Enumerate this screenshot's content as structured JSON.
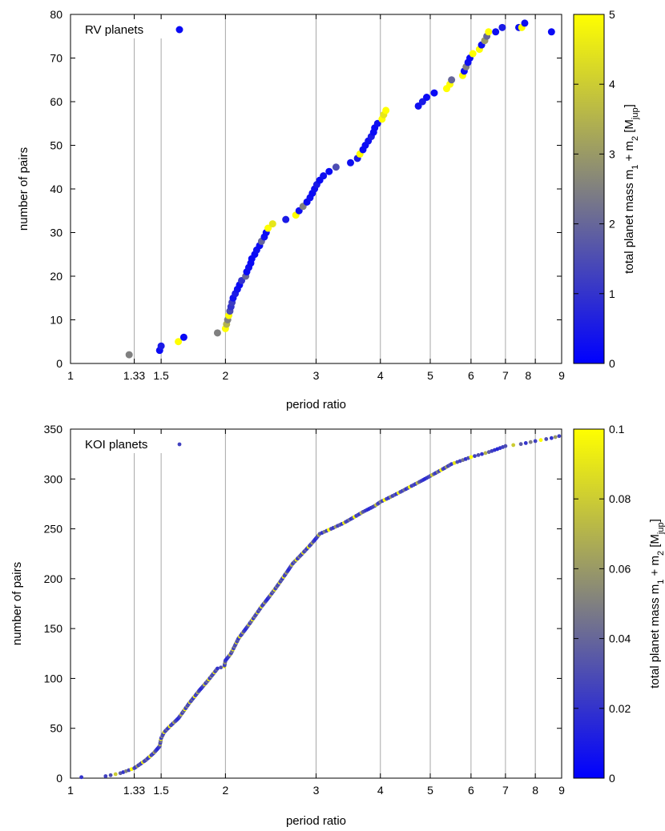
{
  "chart_data": [
    {
      "type": "scatter",
      "xscale": "log",
      "xlim": [
        1,
        9
      ],
      "ylim": [
        0,
        80
      ],
      "xlabel": "period ratio",
      "ylabel": "number of pairs",
      "xticks": [
        1,
        1.33,
        1.5,
        2,
        3,
        4,
        5,
        6,
        7,
        8,
        9
      ],
      "xtick_labels": [
        "1",
        "1.33",
        "1.5",
        "2",
        "3",
        "4",
        "5",
        "6",
        "7",
        "",
        "9"
      ],
      "extra_tick_label": {
        "value": 7.75,
        "text": "8"
      },
      "yticks": [
        0,
        10,
        20,
        30,
        40,
        50,
        60,
        70,
        80
      ],
      "grid": "vertical lines at 1.33, 1.5, 2, 3, 4, 5, 6, 7, 8",
      "legend": {
        "label": "RV planets",
        "placement": "top-left"
      },
      "colorbar": {
        "label": "total planet mass m1 + m2 [Mjup]",
        "label_parts": [
          "total planet mass m",
          "1",
          " + m",
          "2",
          " [M",
          "jup",
          "]"
        ],
        "range": [
          0,
          5
        ],
        "ticks": [
          0,
          1,
          2,
          3,
          4,
          5
        ],
        "colors": [
          "#0000ff",
          "#808080",
          "#ffff00"
        ]
      },
      "series": [
        {
          "name": "RV planets",
          "x": [
            1.3,
            1.49,
            1.5,
            1.62,
            1.66,
            1.93,
            2.0,
            2.01,
            2.02,
            2.03,
            2.04,
            2.05,
            2.06,
            2.07,
            2.09,
            2.11,
            2.13,
            2.15,
            2.19,
            2.2,
            2.22,
            2.24,
            2.25,
            2.28,
            2.3,
            2.33,
            2.35,
            2.38,
            2.4,
            2.42,
            2.47,
            2.62,
            2.74,
            2.78,
            2.83,
            2.88,
            2.92,
            2.95,
            2.98,
            3.01,
            3.05,
            3.1,
            3.18,
            3.28,
            3.5,
            3.61,
            3.65,
            3.7,
            3.74,
            3.79,
            3.84,
            3.88,
            3.9,
            3.95,
            4.03,
            4.06,
            4.1,
            4.74,
            4.83,
            4.92,
            5.09,
            5.38,
            5.46,
            5.5,
            5.78,
            5.82,
            5.87,
            5.92,
            5.97,
            6.05,
            6.23,
            6.29,
            6.38,
            6.44,
            6.49,
            6.7,
            6.9,
            7.43,
            7.53,
            7.63,
            8.6
          ],
          "y": [
            2,
            3,
            4,
            5,
            6,
            7,
            8,
            9,
            10,
            11,
            12,
            13,
            14,
            15,
            16,
            17,
            18,
            19,
            20,
            21,
            22,
            23,
            24,
            25,
            26,
            27,
            28,
            29,
            30,
            31,
            32,
            33,
            34,
            35,
            36,
            37,
            38,
            39,
            40,
            41,
            42,
            43,
            44,
            45,
            46,
            47,
            48,
            49,
            50,
            51,
            52,
            53,
            54,
            55,
            56,
            57,
            58,
            59,
            60,
            61,
            62,
            63,
            64,
            65,
            66,
            67,
            68,
            69,
            70,
            71,
            72,
            73,
            74,
            75,
            76,
            76,
            77,
            77,
            77,
            78,
            76
          ],
          "mass": [
            2.5,
            0.2,
            0.5,
            5.0,
            0.2,
            2.5,
            5.0,
            3.5,
            2.5,
            5.0,
            1.5,
            1.0,
            1.2,
            0.3,
            0.5,
            0.3,
            0.2,
            1.0,
            2.0,
            0.2,
            0.3,
            0.2,
            0.2,
            0.2,
            0.3,
            0.2,
            2.0,
            0.3,
            0.2,
            5.0,
            4.5,
            0.5,
            5.0,
            0.3,
            2.5,
            0.2,
            0.3,
            0.2,
            0.3,
            0.5,
            0.2,
            0.3,
            0.2,
            1.5,
            0.3,
            0.5,
            5.0,
            0.2,
            0.2,
            0.3,
            0.5,
            0.2,
            0.2,
            0.3,
            5.0,
            4.5,
            5.0,
            0.3,
            0.5,
            0.2,
            0.2,
            5.0,
            5.0,
            2.0,
            5.0,
            0.3,
            2.5,
            0.3,
            0.2,
            5.0,
            5.0,
            0.3,
            3.0,
            2.0,
            5.0,
            0.3,
            0.5,
            0.3,
            5.0,
            0.3,
            0.2
          ]
        }
      ]
    },
    {
      "type": "scatter",
      "xscale": "log",
      "xlim": [
        1,
        9
      ],
      "ylim": [
        0,
        350
      ],
      "xlabel": "period ratio",
      "ylabel": "number of pairs",
      "xticks": [
        1,
        1.33,
        1.5,
        2,
        3,
        4,
        5,
        6,
        7,
        8,
        9
      ],
      "xtick_labels": [
        "1",
        "1.33",
        "1.5",
        "2",
        "3",
        "4",
        "5",
        "6",
        "7",
        "8",
        "9"
      ],
      "yticks": [
        0,
        50,
        100,
        150,
        200,
        250,
        300,
        350
      ],
      "grid": "vertical lines at 1.33, 1.5, 2, 3, 4, 5, 6, 7, 8",
      "legend": {
        "label": "KOI planets",
        "placement": "top-left"
      },
      "colorbar": {
        "label": "total planet mass m1 + m2 [Mjup]",
        "label_parts": [
          "total planet mass m",
          "1",
          " + m",
          "2",
          " [M",
          "jup",
          "]"
        ],
        "range": [
          0,
          0.1
        ],
        "ticks": [
          0,
          0.02,
          0.04,
          0.06,
          0.08,
          0.1
        ],
        "colors": [
          "#0000ff",
          "#808080",
          "#ffff00"
        ]
      },
      "curve_knots": {
        "x": [
          1.05,
          1.17,
          1.25,
          1.33,
          1.4,
          1.45,
          1.49,
          1.5,
          1.52,
          1.56,
          1.62,
          1.7,
          1.78,
          1.85,
          1.93,
          1.99,
          2.0,
          2.05,
          2.12,
          2.25,
          2.35,
          2.5,
          2.7,
          2.95,
          3.05,
          3.4,
          3.7,
          3.9,
          4.0,
          4.3,
          4.6,
          5.0,
          5.5,
          6.0,
          6.5,
          7.0,
          7.5,
          8.0,
          8.6,
          8.9
        ],
        "y": [
          1,
          2,
          5,
          10,
          18,
          25,
          32,
          40,
          46,
          52,
          60,
          75,
          88,
          98,
          110,
          112,
          118,
          125,
          140,
          158,
          172,
          190,
          215,
          236,
          245,
          256,
          267,
          273,
          277,
          285,
          293,
          303,
          315,
          322,
          327,
          333,
          335,
          338,
          341,
          343
        ]
      },
      "series": [
        {
          "name": "KOI planets",
          "n_points": 343,
          "mass_colors_cycle": [
            0.015,
            0.02,
            0.025,
            0.03,
            0.08,
            0.035,
            0.02,
            0.05,
            0.025,
            0.1,
            0.03,
            0.02,
            0.06,
            0.025,
            0.035,
            0.02,
            0.09,
            0.03,
            0.025,
            0.045,
            0.02,
            0.03,
            0.1,
            0.025,
            0.03,
            0.02,
            0.07,
            0.035,
            0.025,
            0.02
          ]
        }
      ]
    }
  ]
}
